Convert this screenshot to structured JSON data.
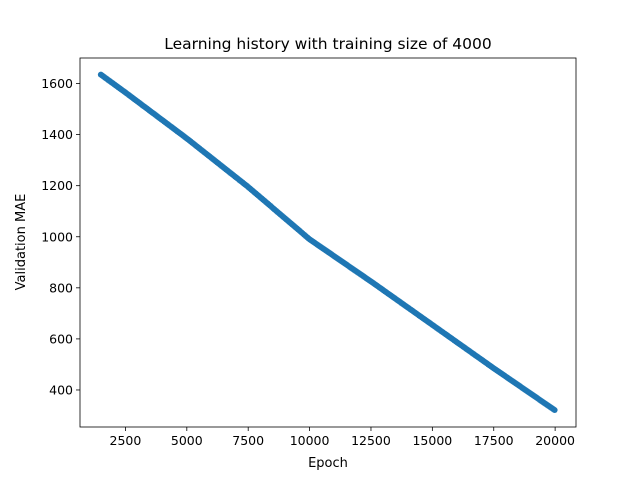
{
  "chart_data": {
    "type": "scatter",
    "title": "Learning history with training size of 4000",
    "xlabel": "Epoch",
    "ylabel": "Validation MAE",
    "xlim": [
      650,
      20850
    ],
    "ylim": [
      255,
      1700
    ],
    "xticks": [
      2500,
      5000,
      7500,
      10000,
      12500,
      15000,
      17500,
      20000
    ],
    "yticks": [
      400,
      600,
      800,
      1000,
      1200,
      1400,
      1600
    ],
    "grid": false,
    "legend": "none",
    "marker_color": "#1f77b4",
    "points_sampled": [
      {
        "x": 1500,
        "y": 1635
      },
      {
        "x": 2500,
        "y": 1565
      },
      {
        "x": 5000,
        "y": 1385
      },
      {
        "x": 7500,
        "y": 1195
      },
      {
        "x": 10000,
        "y": 990
      },
      {
        "x": 12500,
        "y": 825
      },
      {
        "x": 15000,
        "y": 655
      },
      {
        "x": 17500,
        "y": 485
      },
      {
        "x": 20000,
        "y": 320
      }
    ]
  }
}
